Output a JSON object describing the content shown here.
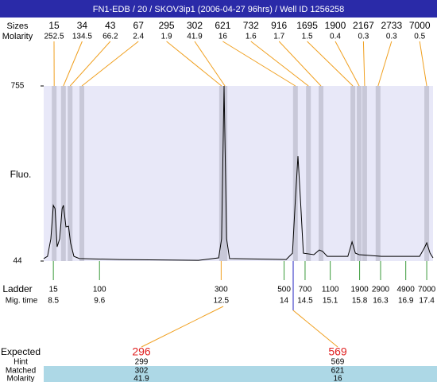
{
  "chart_data": {
    "type": "line",
    "title": "FN1-EDB / 20 / SKOV3ip1 (2006-04-27 96hrs) / Well ID 1256258",
    "y_label": "Fluo.",
    "ylim": [
      44,
      755
    ],
    "yticks": [
      44,
      755
    ],
    "xlim": [
      8.27,
      17.55
    ],
    "color": "#000000",
    "x": [
      8.27,
      8.36,
      8.44,
      8.5,
      8.54,
      8.59,
      8.65,
      8.71,
      8.74,
      8.8,
      8.86,
      8.91,
      8.99,
      9.12,
      10.07,
      11.96,
      12.44,
      12.51,
      12.57,
      12.63,
      12.7,
      14.05,
      14.2,
      14.27,
      14.33,
      14.39,
      14.46,
      14.71,
      14.84,
      14.92,
      15.03,
      15.52,
      15.62,
      15.7,
      15.79,
      16.32,
      17.23,
      17.34,
      17.4,
      17.48,
      17.55
    ],
    "values": [
      54,
      63,
      134,
      270,
      257,
      102,
      134,
      257,
      270,
      183,
      186,
      118,
      63,
      54,
      50,
      47,
      57,
      134,
      755,
      134,
      54,
      50,
      76,
      296,
      470,
      296,
      76,
      70,
      89,
      83,
      63,
      63,
      122,
      76,
      70,
      63,
      63,
      96,
      118,
      76,
      57
    ],
    "peaks": {
      "size_label": "Sizes",
      "molarity_label": "Molarity",
      "sizes": [
        15,
        34,
        43,
        67,
        295,
        302,
        621,
        732,
        916,
        1695,
        1900,
        2167,
        2733,
        7000
      ],
      "molarity": [
        252.5,
        134.5,
        66.2,
        2.4,
        1.9,
        41.9,
        16,
        1.6,
        1.7,
        1.5,
        0.4,
        0.3,
        0.3,
        0.5
      ],
      "times": [
        8.52,
        8.74,
        8.9,
        9.18,
        12.51,
        12.59,
        14.27,
        14.58,
        14.88,
        15.64,
        15.79,
        15.92,
        16.24,
        17.4
      ]
    },
    "ladder": {
      "label": "Ladder",
      "time_label": "Mig. time",
      "sizes": [
        15,
        100,
        300,
        500,
        700,
        1100,
        1900,
        2900,
        4900,
        7000
      ],
      "times": [
        8.5,
        9.6,
        12.5,
        14,
        14.5,
        15.1,
        15.8,
        16.3,
        16.9,
        17.4
      ]
    },
    "expected": {
      "label": "Expected",
      "values": [
        296,
        569
      ],
      "hint_label": "Hint",
      "hint": [
        299,
        569
      ],
      "matched_label": "Matched",
      "matched": [
        302,
        621
      ],
      "molarity_label": "Molarity",
      "molarity": [
        41.9,
        16
      ]
    }
  }
}
